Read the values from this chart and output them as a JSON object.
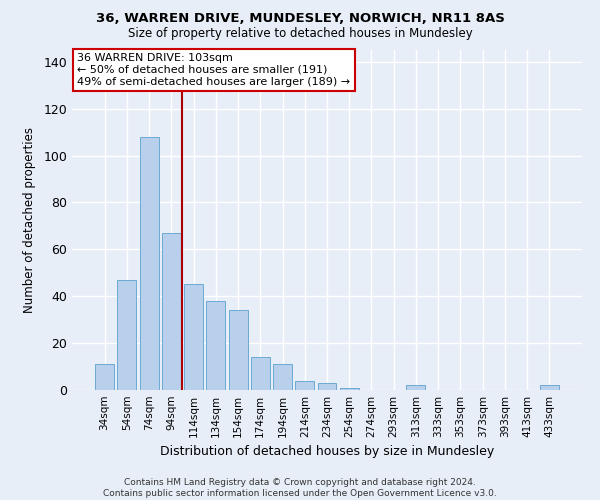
{
  "title1": "36, WARREN DRIVE, MUNDESLEY, NORWICH, NR11 8AS",
  "title2": "Size of property relative to detached houses in Mundesley",
  "xlabel": "Distribution of detached houses by size in Mundesley",
  "ylabel": "Number of detached properties",
  "categories": [
    "34sqm",
    "54sqm",
    "74sqm",
    "94sqm",
    "114sqm",
    "134sqm",
    "154sqm",
    "174sqm",
    "194sqm",
    "214sqm",
    "234sqm",
    "254sqm",
    "274sqm",
    "293sqm",
    "313sqm",
    "333sqm",
    "353sqm",
    "373sqm",
    "393sqm",
    "413sqm",
    "433sqm"
  ],
  "values": [
    11,
    47,
    108,
    67,
    45,
    38,
    34,
    14,
    11,
    4,
    3,
    1,
    0,
    0,
    2,
    0,
    0,
    0,
    0,
    0,
    2
  ],
  "bar_color": "#b8d0eb",
  "bar_edge_color": "#6aaad4",
  "vline_x": 3.5,
  "vline_color": "#aa0000",
  "annotation_text": "36 WARREN DRIVE: 103sqm\n← 50% of detached houses are smaller (191)\n49% of semi-detached houses are larger (189) →",
  "annotation_box_color": "#ffffff",
  "annotation_box_edge_color": "#cc0000",
  "ylim": [
    0,
    145
  ],
  "yticks": [
    0,
    20,
    40,
    60,
    80,
    100,
    120,
    140
  ],
  "footer": "Contains HM Land Registry data © Crown copyright and database right 2024.\nContains public sector information licensed under the Open Government Licence v3.0.",
  "background_color": "#e8eef8",
  "grid_color": "#ffffff"
}
